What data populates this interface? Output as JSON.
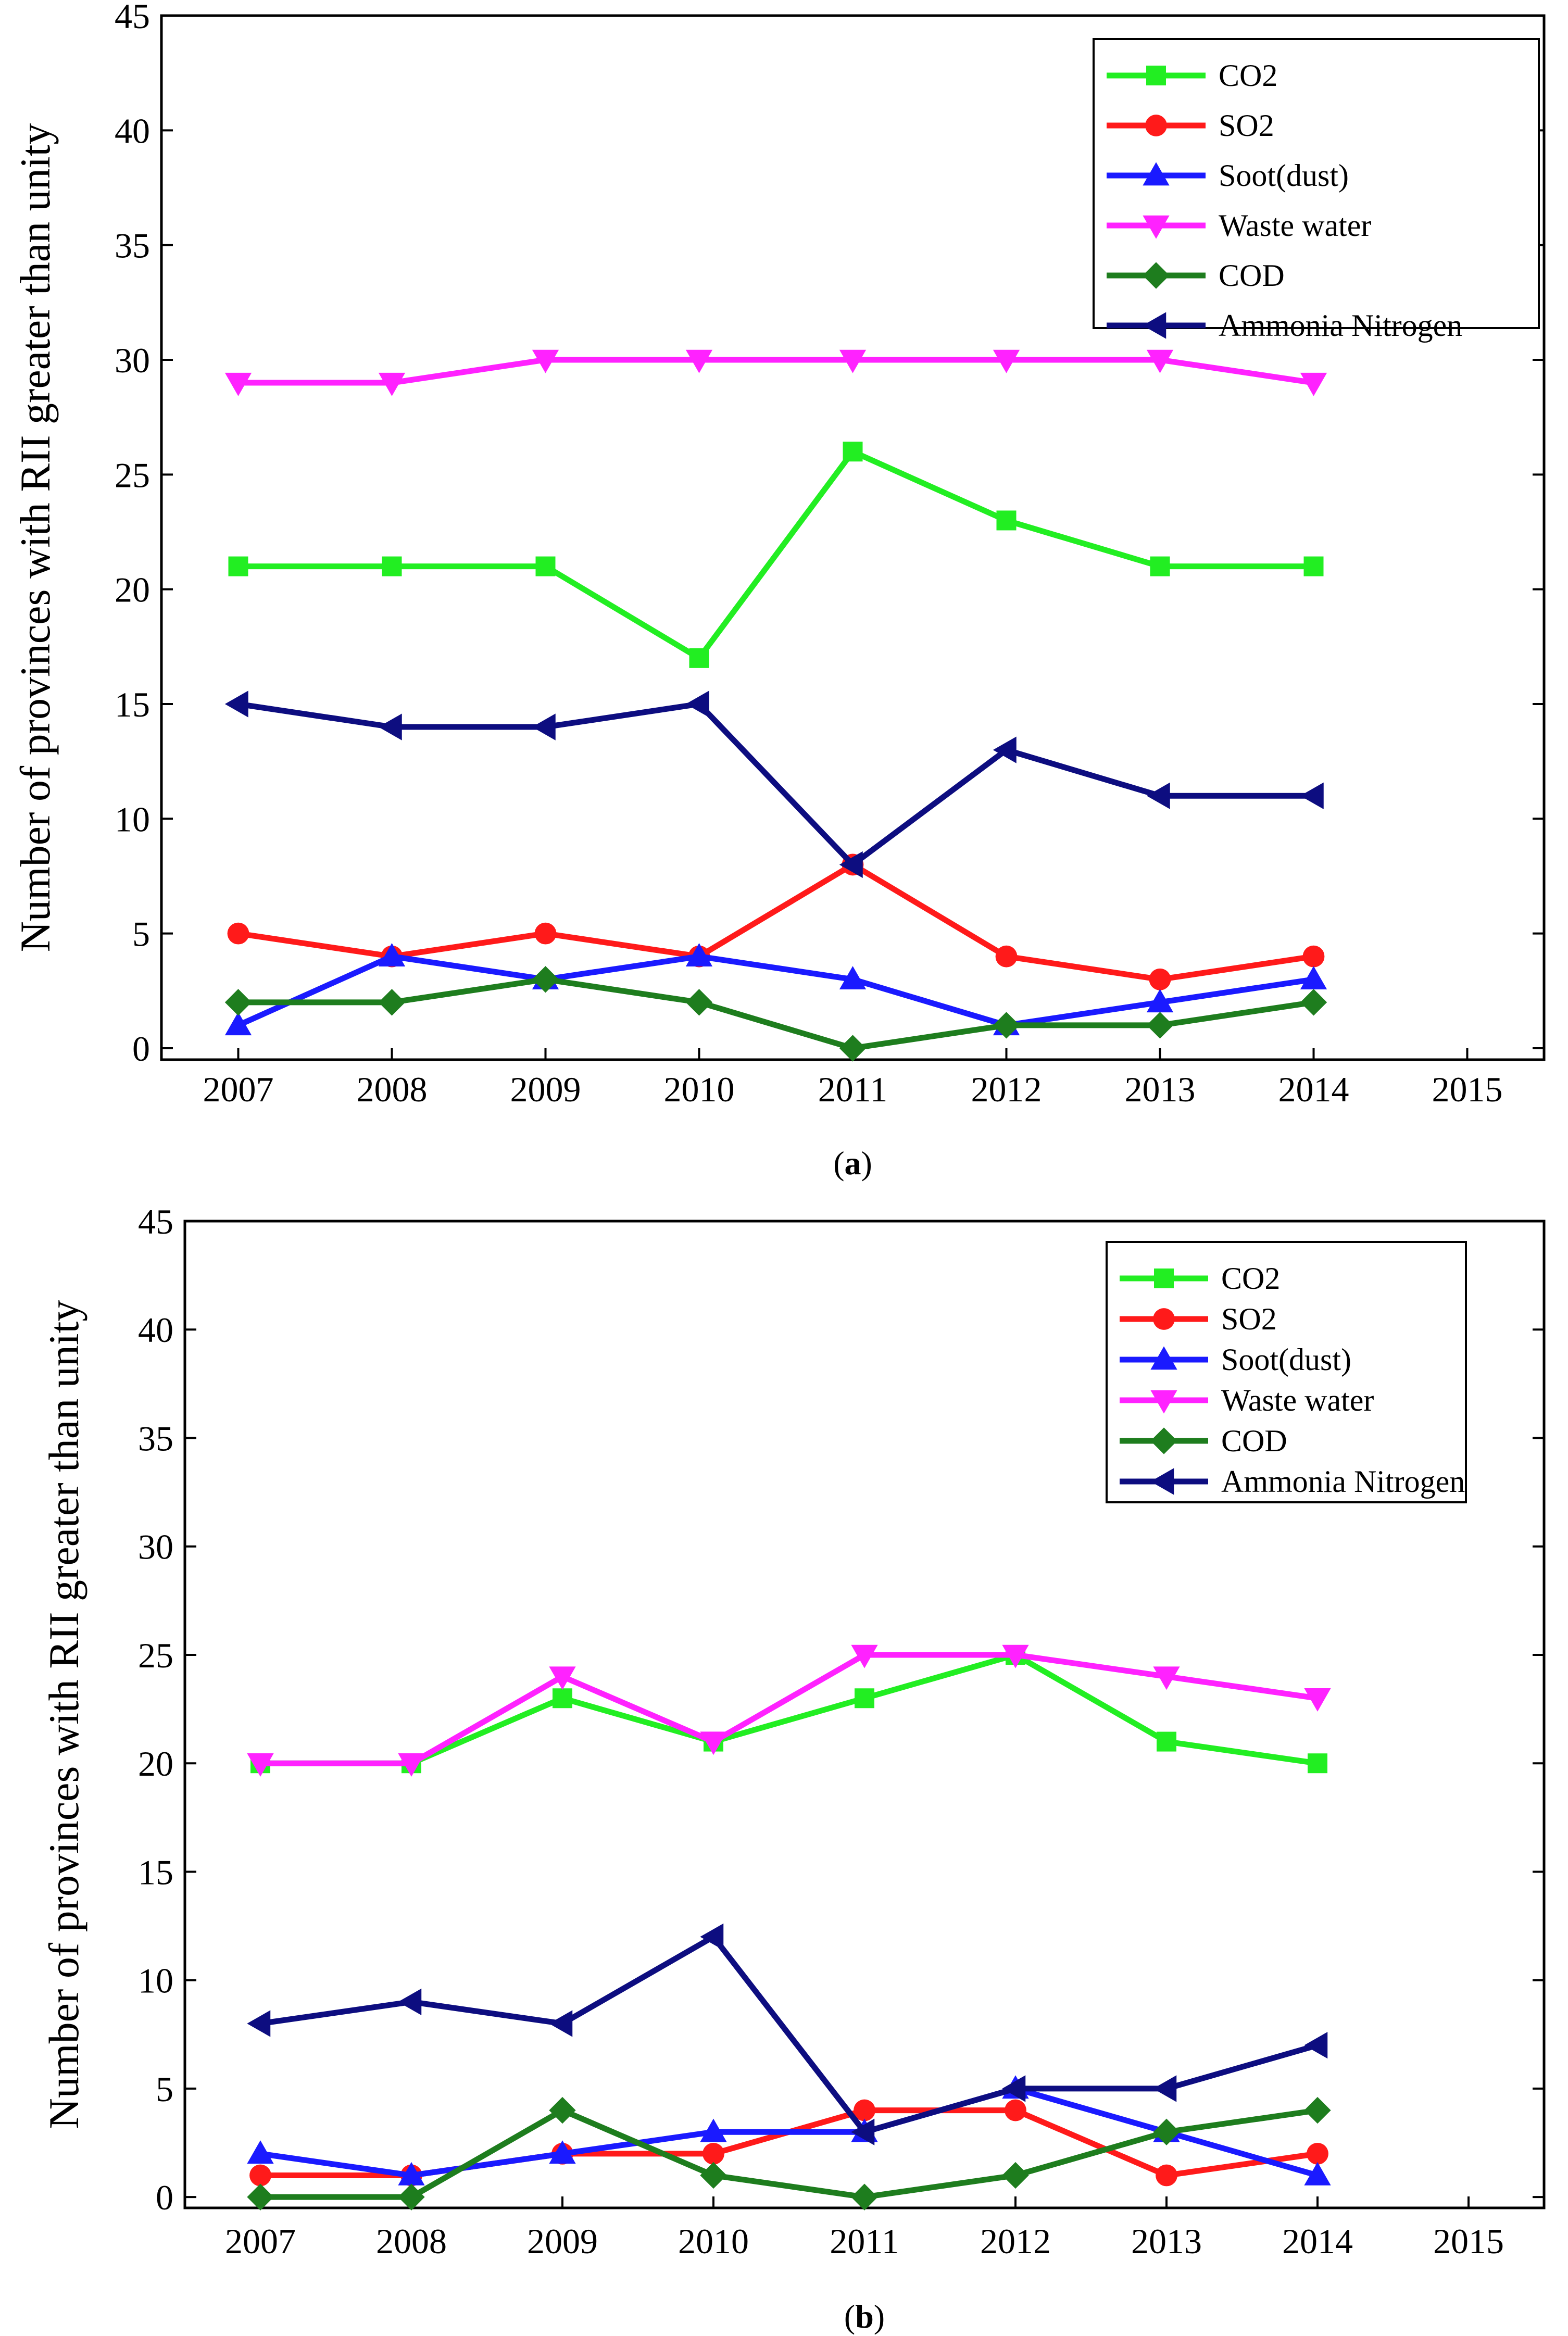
{
  "chart_data": [
    {
      "type": "line",
      "caption": {
        "open": "(",
        "letter": "a",
        "close": ")"
      },
      "ylabel": "Number of provinces with RII greater than unity",
      "xlabel": "",
      "x_ticks": [
        "2007",
        "2008",
        "2009",
        "2010",
        "2011",
        "2012",
        "2013",
        "2014",
        "2015"
      ],
      "y_ticks": [
        "0",
        "5",
        "10",
        "15",
        "20",
        "25",
        "30",
        "35",
        "40",
        "45"
      ],
      "xlim": [
        2006.5,
        2015.5
      ],
      "ylim": [
        -0.5,
        45
      ],
      "legend_position": "top-right",
      "x": [
        2007,
        2008,
        2009,
        2010,
        2011,
        2012,
        2013,
        2014
      ],
      "series": [
        {
          "name": "CO2",
          "color": "#22ee22",
          "marker": "square",
          "values": [
            21,
            21,
            21,
            17,
            26,
            23,
            21,
            21
          ]
        },
        {
          "name": "SO2",
          "color": "#ff1a1a",
          "marker": "circle",
          "values": [
            5,
            4,
            5,
            4,
            8,
            4,
            3,
            4
          ]
        },
        {
          "name": "Soot(dust)",
          "color": "#1a1aff",
          "marker": "triangle-up",
          "values": [
            1,
            4,
            3,
            4,
            3,
            1,
            2,
            3
          ]
        },
        {
          "name": "Waste water",
          "color": "#ff22ff",
          "marker": "triangle-down",
          "values": [
            29,
            29,
            30,
            30,
            30,
            30,
            30,
            29
          ]
        },
        {
          "name": "COD",
          "color": "#1e7d1e",
          "marker": "diamond",
          "values": [
            2,
            2,
            3,
            2,
            0,
            1,
            1,
            2
          ]
        },
        {
          "name": "Ammonia Nitrogen",
          "color": "#0d0d80",
          "marker": "triangle-left",
          "values": [
            15,
            14,
            14,
            15,
            8,
            13,
            11,
            11
          ]
        }
      ]
    },
    {
      "type": "line",
      "caption": {
        "open": "(",
        "letter": "b",
        "close": ")"
      },
      "ylabel": "Number of provinces with RII greater than unity",
      "xlabel": "",
      "x_ticks": [
        "2007",
        "2008",
        "2009",
        "2010",
        "2011",
        "2012",
        "2013",
        "2014",
        "2015"
      ],
      "y_ticks": [
        "0",
        "5",
        "10",
        "15",
        "20",
        "25",
        "30",
        "35",
        "40",
        "45"
      ],
      "xlim": [
        2006.5,
        2015.5
      ],
      "ylim": [
        -0.5,
        45
      ],
      "legend_position": "top-right",
      "x": [
        2007,
        2008,
        2009,
        2010,
        2011,
        2012,
        2013,
        2014
      ],
      "series": [
        {
          "name": "CO2",
          "color": "#22ee22",
          "marker": "square",
          "values": [
            20,
            20,
            23,
            21,
            23,
            25,
            21,
            20
          ]
        },
        {
          "name": "SO2",
          "color": "#ff1a1a",
          "marker": "circle",
          "values": [
            1,
            1,
            2,
            2,
            4,
            4,
            1,
            2
          ]
        },
        {
          "name": "Soot(dust)",
          "color": "#1a1aff",
          "marker": "triangle-up",
          "values": [
            2,
            1,
            2,
            3,
            3,
            5,
            3,
            1
          ]
        },
        {
          "name": "Waste water",
          "color": "#ff22ff",
          "marker": "triangle-down",
          "values": [
            20,
            20,
            24,
            21,
            25,
            25,
            24,
            23
          ]
        },
        {
          "name": "COD",
          "color": "#1e7d1e",
          "marker": "diamond",
          "values": [
            0,
            0,
            4,
            1,
            0,
            1,
            3,
            4
          ]
        },
        {
          "name": "Ammonia Nitrogen",
          "color": "#0d0d80",
          "marker": "triangle-left",
          "values": [
            8,
            9,
            8,
            12,
            3,
            5,
            5,
            7
          ]
        }
      ]
    }
  ]
}
